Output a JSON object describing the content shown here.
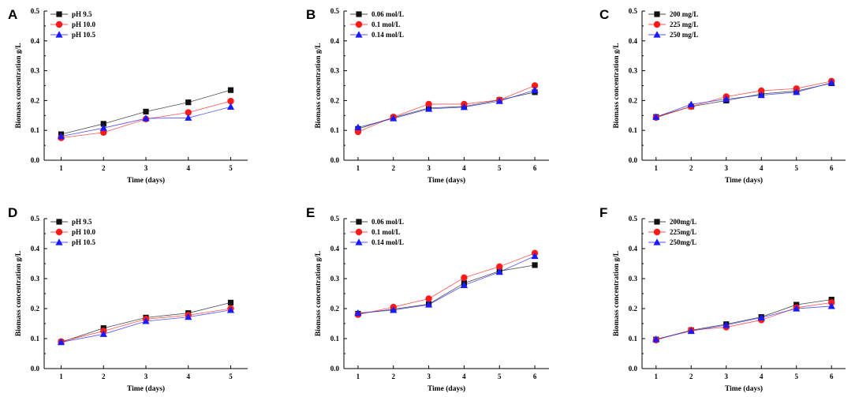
{
  "figure": {
    "colors": {
      "black": "#111111",
      "red": "#ff1a1a",
      "blue": "#1a1aff"
    },
    "markers": [
      "square",
      "circle",
      "triangle"
    ]
  },
  "chart_data": [
    {
      "panel": "A",
      "type": "line",
      "xlabel": "Time (days)",
      "ylabel": "Biomass concentration g/L",
      "x": [
        1,
        2,
        3,
        4,
        5
      ],
      "xlim": [
        0.6,
        5.4
      ],
      "ylim": [
        0.0,
        0.5
      ],
      "yticks": [
        0.0,
        0.1,
        0.2,
        0.3,
        0.4,
        0.5
      ],
      "legend_position": "top-left",
      "series": [
        {
          "name": "pH  9.5",
          "values": [
            0.087,
            0.122,
            0.163,
            0.194,
            0.235
          ]
        },
        {
          "name": "pH 10.0",
          "values": [
            0.075,
            0.093,
            0.138,
            0.16,
            0.198
          ]
        },
        {
          "name": "pH 10.5",
          "values": [
            0.08,
            0.108,
            0.14,
            0.142,
            0.179
          ]
        }
      ]
    },
    {
      "panel": "B",
      "type": "line",
      "xlabel": "Time (days)",
      "ylabel": "Biomass concentration g/L",
      "x": [
        1,
        2,
        3,
        4,
        5,
        6
      ],
      "xlim": [
        0.6,
        6.4
      ],
      "ylim": [
        0.0,
        0.5
      ],
      "yticks": [
        0.0,
        0.1,
        0.2,
        0.3,
        0.4,
        0.5
      ],
      "legend_position": "top-left",
      "series": [
        {
          "name": "0.06 mol/L",
          "values": [
            0.105,
            0.143,
            0.175,
            0.18,
            0.202,
            0.228
          ]
        },
        {
          "name": "0.1 mol/L",
          "values": [
            0.095,
            0.145,
            0.188,
            0.188,
            0.202,
            0.25
          ]
        },
        {
          "name": "0.14 mol/L",
          "values": [
            0.11,
            0.14,
            0.172,
            0.178,
            0.198,
            0.235
          ]
        }
      ]
    },
    {
      "panel": "C",
      "type": "line",
      "xlabel": "Time (days)",
      "ylabel": "Biomass concentration g/L",
      "x": [
        1,
        2,
        3,
        4,
        5,
        6
      ],
      "xlim": [
        0.6,
        6.4
      ],
      "ylim": [
        0.0,
        0.5
      ],
      "yticks": [
        0.0,
        0.1,
        0.2,
        0.3,
        0.4,
        0.5
      ],
      "legend_position": "top-left",
      "series": [
        {
          "name": "200 mg/L",
          "values": [
            0.145,
            0.18,
            0.2,
            0.222,
            0.232,
            0.258
          ]
        },
        {
          "name": "225 mg/L",
          "values": [
            0.143,
            0.18,
            0.213,
            0.233,
            0.24,
            0.265
          ]
        },
        {
          "name": "250 mg/L",
          "values": [
            0.145,
            0.187,
            0.205,
            0.218,
            0.228,
            0.26
          ]
        }
      ]
    },
    {
      "panel": "D",
      "type": "line",
      "xlabel": "Time (days)",
      "ylabel": "Biomass concentration g/L",
      "x": [
        1,
        2,
        3,
        4,
        5
      ],
      "xlim": [
        0.6,
        5.4
      ],
      "ylim": [
        0.0,
        0.5
      ],
      "yticks": [
        0.0,
        0.1,
        0.2,
        0.3,
        0.4,
        0.5
      ],
      "legend_position": "top-left",
      "series": [
        {
          "name": "pH  9.5",
          "values": [
            0.088,
            0.135,
            0.17,
            0.185,
            0.22
          ]
        },
        {
          "name": "pH 10.0",
          "values": [
            0.09,
            0.125,
            0.165,
            0.178,
            0.2
          ]
        },
        {
          "name": "pH 10.5",
          "values": [
            0.088,
            0.115,
            0.158,
            0.172,
            0.195
          ]
        }
      ]
    },
    {
      "panel": "E",
      "type": "line",
      "xlabel": "Time (days)",
      "ylabel": "Biomass concentration g/L",
      "x": [
        1,
        2,
        3,
        4,
        5,
        6
      ],
      "xlim": [
        0.6,
        6.4
      ],
      "ylim": [
        0.0,
        0.5
      ],
      "yticks": [
        0.0,
        0.1,
        0.2,
        0.3,
        0.4,
        0.5
      ],
      "legend_position": "top-left",
      "series": [
        {
          "name": "0.06 mol/L",
          "values": [
            0.183,
            0.198,
            0.215,
            0.285,
            0.325,
            0.345
          ]
        },
        {
          "name": "0.1 mol/L",
          "values": [
            0.18,
            0.205,
            0.233,
            0.303,
            0.34,
            0.385
          ]
        },
        {
          "name": "0.14 mol/L",
          "values": [
            0.185,
            0.195,
            0.213,
            0.278,
            0.322,
            0.375
          ]
        }
      ]
    },
    {
      "panel": "F",
      "type": "line",
      "xlabel": "Time (days)",
      "ylabel": "Biomass concentration g/L",
      "x": [
        1,
        2,
        3,
        4,
        5,
        6
      ],
      "xlim": [
        0.6,
        6.4
      ],
      "ylim": [
        0.0,
        0.5
      ],
      "yticks": [
        0.0,
        0.1,
        0.2,
        0.3,
        0.4,
        0.5
      ],
      "legend_position": "top-left",
      "series": [
        {
          "name": "200mg/L",
          "values": [
            0.097,
            0.128,
            0.148,
            0.172,
            0.213,
            0.23
          ]
        },
        {
          "name": "225mg/L",
          "values": [
            0.095,
            0.128,
            0.138,
            0.162,
            0.203,
            0.22
          ]
        },
        {
          "name": "250mg/L",
          "values": [
            0.098,
            0.125,
            0.145,
            0.17,
            0.2,
            0.208
          ]
        }
      ]
    }
  ]
}
